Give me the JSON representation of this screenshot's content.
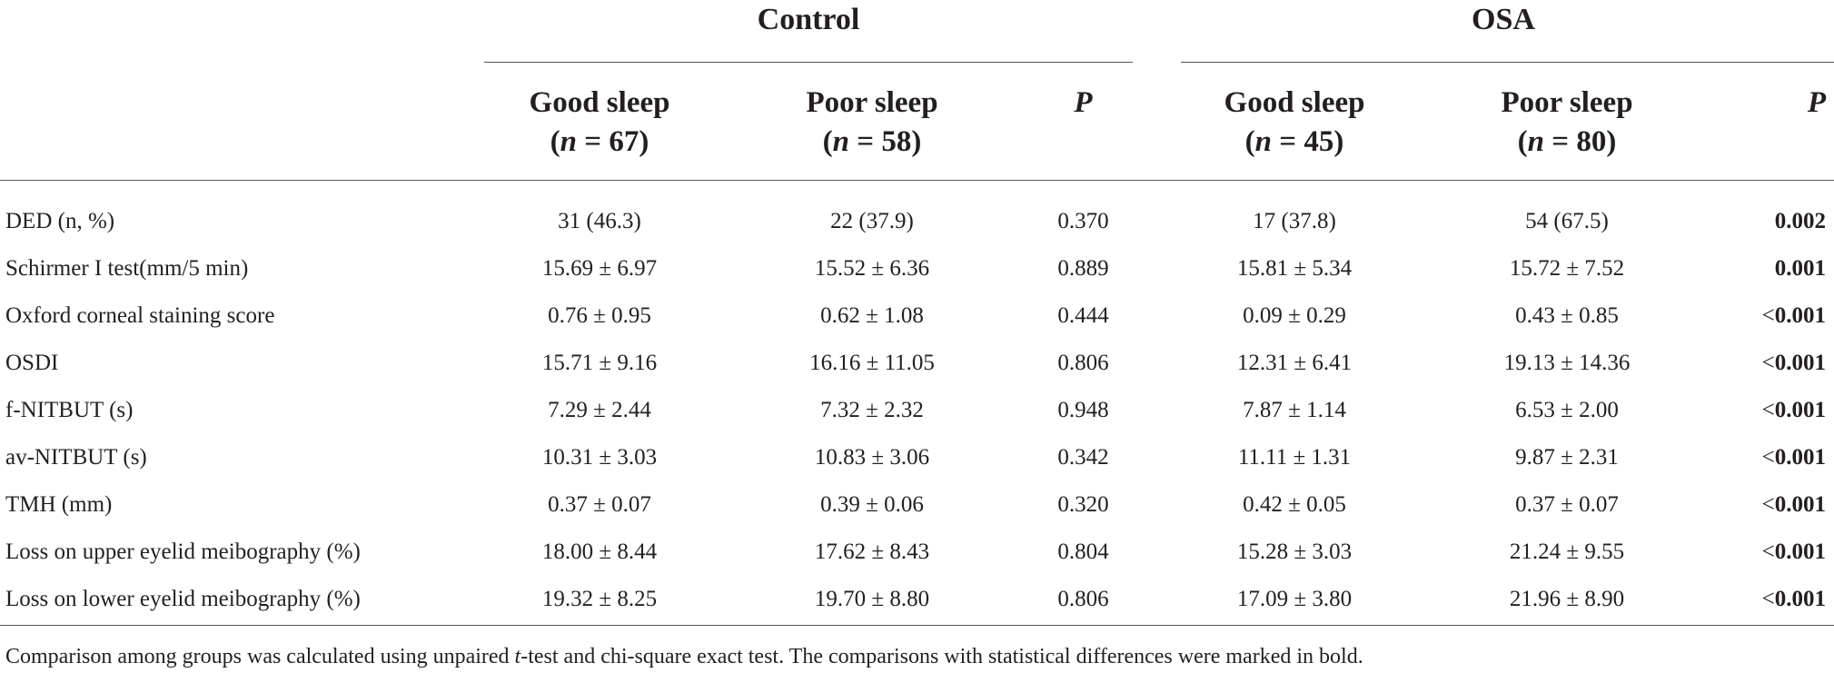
{
  "groups": {
    "control": "Control",
    "osa": "OSA"
  },
  "headers": {
    "good_sleep": "Good sleep",
    "poor_sleep": "Poor sleep",
    "p": "P",
    "n_label": "n",
    "control_good_n": "= 67)",
    "control_poor_n": "= 58)",
    "osa_good_n": "= 45)",
    "osa_poor_n": "= 80)"
  },
  "rows": [
    {
      "label": "DED (n, %)",
      "cg": "31 (46.3)",
      "cp": "22 (37.9)",
      "cpv": "0.370",
      "og": "17 (37.8)",
      "op": "54 (67.5)",
      "opv": "0.002"
    },
    {
      "label": "Schirmer I test(mm/5 min)",
      "cg": "15.69 ± 6.97",
      "cp": "15.52 ± 6.36",
      "cpv": "0.889",
      "og": "15.81 ± 5.34",
      "op": "15.72 ± 7.52",
      "opv": "0.001"
    },
    {
      "label": "Oxford corneal staining score",
      "cg": "0.76 ± 0.95",
      "cp": "0.62 ± 1.08",
      "cpv": "0.444",
      "og": "0.09 ± 0.29",
      "op": "0.43 ± 0.85",
      "opv_prefix": "<",
      "opv": "0.001"
    },
    {
      "label": "OSDI",
      "cg": "15.71 ± 9.16",
      "cp": "16.16 ± 11.05",
      "cpv": "0.806",
      "og": "12.31 ± 6.41",
      "op": "19.13 ± 14.36",
      "opv_prefix": "<",
      "opv": "0.001"
    },
    {
      "label": "f-NITBUT (s)",
      "cg": "7.29 ± 2.44",
      "cp": "7.32 ± 2.32",
      "cpv": "0.948",
      "og": "7.87 ± 1.14",
      "op": "6.53 ± 2.00",
      "opv_prefix": "<",
      "opv": "0.001"
    },
    {
      "label": "av-NITBUT (s)",
      "cg": "10.31 ± 3.03",
      "cp": "10.83 ± 3.06",
      "cpv": "0.342",
      "og": "11.11 ± 1.31",
      "op": "9.87 ± 2.31",
      "opv_prefix": "<",
      "opv": "0.001"
    },
    {
      "label": "TMH (mm)",
      "cg": "0.37 ± 0.07",
      "cp": "0.39 ± 0.06",
      "cpv": "0.320",
      "og": "0.42 ± 0.05",
      "op": "0.37 ± 0.07",
      "opv_prefix": "<",
      "opv": "0.001"
    },
    {
      "label": "Loss on upper eyelid meibography (%)",
      "cg": "18.00 ± 8.44",
      "cp": "17.62 ± 8.43",
      "cpv": "0.804",
      "og": "15.28 ± 3.03",
      "op": "21.24 ± 9.55",
      "opv_prefix": "<",
      "opv": "0.001"
    },
    {
      "label": "Loss on lower eyelid meibography (%)",
      "cg": "19.32 ± 8.25",
      "cp": "19.70 ± 8.80",
      "cpv": "0.806",
      "og": "17.09 ± 3.80",
      "op": "21.96 ± 8.90",
      "opv_prefix": "<",
      "opv": "0.001"
    }
  ],
  "footnote": {
    "part1": "Comparison among groups was calculated using unpaired ",
    "t": "t",
    "part2": "-test and chi-square exact test. The comparisons with statistical differences were marked in bold."
  }
}
